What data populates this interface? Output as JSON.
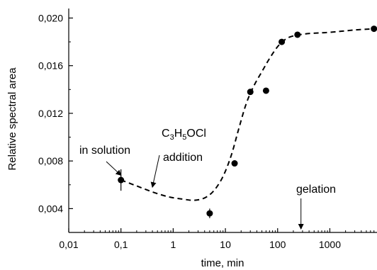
{
  "chart_data": {
    "type": "scatter",
    "xlabel": "time, min",
    "ylabel": "Relative spectral area",
    "xscale": "log",
    "xlim": [
      0.01,
      8000
    ],
    "ylim": [
      0.002,
      0.0208
    ],
    "x_ticks": [
      0.01,
      0.1,
      1,
      10,
      100,
      1000
    ],
    "x_tick_labels": [
      "0,01",
      "0,1",
      "1",
      "10",
      "100",
      "1000"
    ],
    "y_ticks": [
      0.004,
      0.008,
      0.012,
      0.016,
      0.02
    ],
    "y_tick_labels": [
      "0,004",
      "0,008",
      "0,012",
      "0,016",
      "0,020"
    ],
    "grid": false,
    "series": [
      {
        "marker": "circle",
        "color": "#000000",
        "points": [
          {
            "x": 0.1,
            "y": 0.0064,
            "err": 0.0009
          },
          {
            "x": 5,
            "y": 0.0036,
            "err": 0.0004
          },
          {
            "x": 15,
            "y": 0.0078,
            "err": 0
          },
          {
            "x": 30,
            "y": 0.0138,
            "err": 0
          },
          {
            "x": 60,
            "y": 0.0139,
            "err": 0
          },
          {
            "x": 120,
            "y": 0.018,
            "err": 0
          },
          {
            "x": 240,
            "y": 0.0186,
            "err": 0
          },
          {
            "x": 7000,
            "y": 0.0191,
            "err": 0
          }
        ]
      }
    ],
    "fit_curve": {
      "style": "dashed",
      "color": "#000000",
      "points": [
        [
          0.1,
          0.0064
        ],
        [
          0.2,
          0.0059
        ],
        [
          0.4,
          0.0054
        ],
        [
          0.8,
          0.005
        ],
        [
          1.5,
          0.0048
        ],
        [
          2.5,
          0.0047
        ],
        [
          4,
          0.0049
        ],
        [
          6,
          0.0055
        ],
        [
          9,
          0.0067
        ],
        [
          13,
          0.0085
        ],
        [
          18,
          0.0107
        ],
        [
          25,
          0.0128
        ],
        [
          35,
          0.0143
        ],
        [
          50,
          0.0155
        ],
        [
          70,
          0.0166
        ],
        [
          100,
          0.0176
        ],
        [
          140,
          0.0182
        ],
        [
          200,
          0.0185
        ],
        [
          400,
          0.0187
        ],
        [
          1000,
          0.0188
        ],
        [
          3000,
          0.019
        ],
        [
          7000,
          0.0191
        ]
      ]
    },
    "annotations": [
      {
        "id": "in-solution",
        "text": "in solution",
        "arrow_to": [
          0.1,
          0.0068
        ]
      },
      {
        "id": "addition",
        "formula": [
          "C",
          "3",
          "H",
          "5",
          "OCl"
        ],
        "text2": "addition",
        "arrow_to": [
          0.4,
          0.0058
        ]
      },
      {
        "id": "gelation",
        "text": "gelation",
        "arrow_to": [
          280,
          0.0023
        ]
      }
    ]
  }
}
